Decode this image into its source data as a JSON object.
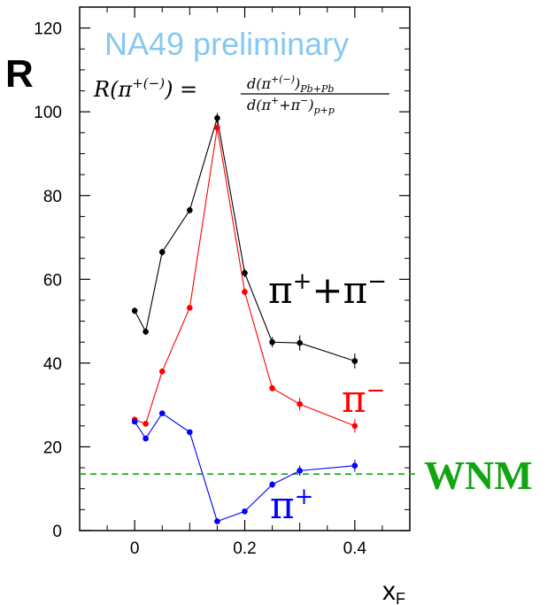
{
  "chart_data": {
    "type": "line",
    "title": "",
    "watermark": "NA49 preliminary",
    "formula": {
      "lhs": "R(π",
      "lhs_sup": "+(−)",
      "lhs_close": ") =",
      "numerator": "d(π",
      "numerator_sup": "+(−)",
      "numerator_close": ")",
      "numerator_sub": "Pb+Pb",
      "denominator": "d(π",
      "denominator_sup": "+",
      "denominator_mid": "+π",
      "denominator_sup2": "−",
      "denominator_close": ")",
      "denominator_sub": "p+p"
    },
    "ylabel": "R",
    "xlabel": "x",
    "xlabel_sub": "F",
    "xlim": [
      -0.1,
      0.5
    ],
    "ylim": [
      0,
      125
    ],
    "x_ticks": [
      0,
      0.2,
      0.4
    ],
    "x_tick_labels": [
      "0",
      "0.2",
      "0.4"
    ],
    "y_ticks": [
      0,
      20,
      40,
      60,
      80,
      100,
      120
    ],
    "y_tick_labels": [
      "0",
      "20",
      "40",
      "60",
      "80",
      "100",
      "120"
    ],
    "grid": false,
    "series": [
      {
        "name": "π⁺+π⁻",
        "color": "#000000",
        "x": [
          0.0,
          0.02,
          0.05,
          0.1,
          0.15,
          0.2,
          0.25,
          0.3,
          0.4
        ],
        "y": [
          52.5,
          47.5,
          66.5,
          76.5,
          98.5,
          61.5,
          45.0,
          44.8,
          40.5
        ],
        "err": [
          0.8,
          0.8,
          0.8,
          0.8,
          1.2,
          1.0,
          1.2,
          1.8,
          1.8
        ]
      },
      {
        "name": "π⁻",
        "color": "#ff0000",
        "x": [
          0.0,
          0.02,
          0.05,
          0.1,
          0.15,
          0.2,
          0.25,
          0.3,
          0.4
        ],
        "y": [
          26.5,
          25.5,
          38.0,
          53.2,
          96.2,
          57.0,
          34.0,
          30.2,
          25.0
        ],
        "err": [
          0.6,
          0.6,
          0.6,
          0.6,
          1.0,
          0.8,
          0.8,
          1.5,
          1.6
        ]
      },
      {
        "name": "π⁺",
        "color": "#0000ff",
        "x": [
          0.0,
          0.02,
          0.05,
          0.1,
          0.15,
          0.2,
          0.25,
          0.3,
          0.4
        ],
        "y": [
          26.0,
          22.0,
          28.0,
          23.5,
          2.2,
          4.6,
          11.0,
          14.3,
          15.5
        ],
        "err": [
          0.6,
          0.6,
          0.6,
          0.6,
          0.6,
          0.6,
          0.8,
          1.2,
          1.4
        ]
      }
    ],
    "reference_line": {
      "label": "WNM",
      "y": 13.5,
      "color": "#11a611",
      "style": "dashed"
    },
    "series_labels": {
      "sum": {
        "base": "π",
        "sup1": "+",
        "mid": "+π",
        "sup2": "−",
        "color": "#000000"
      },
      "minus": {
        "base": "π",
        "sup": "−",
        "color": "#ff0000"
      },
      "plus": {
        "base": "π",
        "sup": "+",
        "color": "#0000ff"
      }
    },
    "watermark_color": "#87c8f0"
  }
}
